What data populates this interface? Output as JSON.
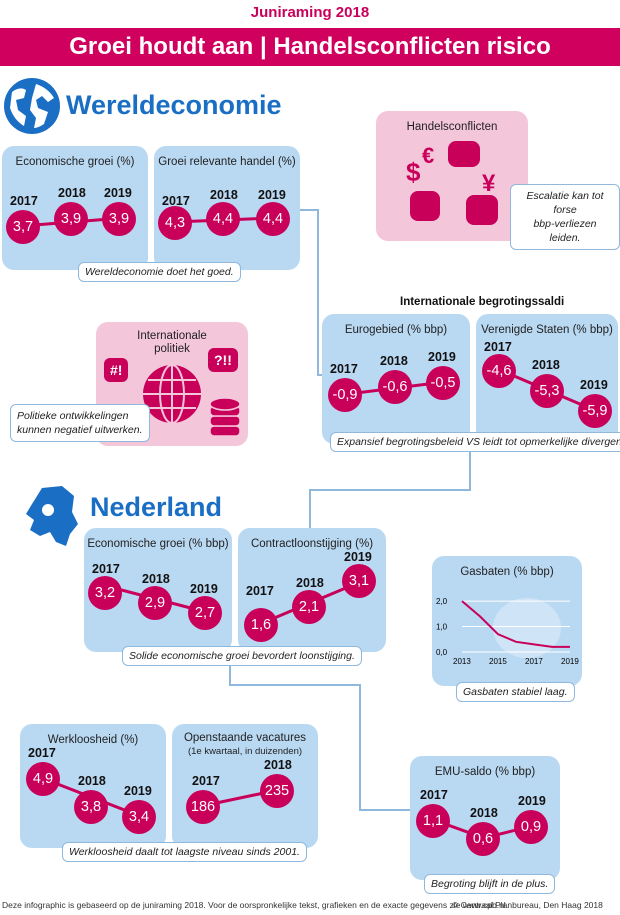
{
  "header": {
    "top_label": "Juniraming 2018",
    "title": "Groei houdt aan | Handelsconflicten risico"
  },
  "world": {
    "section_title": "Wereldeconomie",
    "growth": {
      "title": "Economische groei (%)",
      "years": [
        "2017",
        "2018",
        "2019"
      ],
      "values": [
        "3,7",
        "3,9",
        "3,9"
      ]
    },
    "trade": {
      "title": "Groei relevante handel (%)",
      "years": [
        "2017",
        "2018",
        "2019"
      ],
      "values": [
        "4,3",
        "4,4",
        "4,4"
      ]
    },
    "caption": "Wereldeconomie doet het goed.",
    "trade_conflicts": {
      "title": "Handelsconflicten",
      "caption_line1": "Escalatie kan tot forse",
      "caption_line2": "bbp-verliezen leiden."
    },
    "politics": {
      "title_line1": "Internationale",
      "title_line2": "politiek",
      "badge1": "#!",
      "badge2": "?!!",
      "caption_line1": "Politieke ontwikkelingen",
      "caption_line2": "kunnen negatief uitwerken."
    },
    "budget_heading": "Internationale begrotingssaldi",
    "eurozone": {
      "title": "Eurogebied (% bbp)",
      "years": [
        "2017",
        "2018",
        "2019"
      ],
      "values": [
        "-0,9",
        "-0,6",
        "-0,5"
      ]
    },
    "us": {
      "title": "Verenigde Staten (% bbp)",
      "years": [
        "2017",
        "2018",
        "2019"
      ],
      "values": [
        "-4,6",
        "-5,3",
        "-5,9"
      ]
    },
    "budget_caption": "Expansief begrotingsbeleid VS leidt tot opmerkelijke divergenties."
  },
  "nl": {
    "section_title": "Nederland",
    "growth": {
      "title": "Economische groei (% bbp)",
      "years": [
        "2017",
        "2018",
        "2019"
      ],
      "values": [
        "3,2",
        "2,9",
        "2,7"
      ]
    },
    "wages": {
      "title": "Contractloonstijging (%)",
      "years": [
        "2017",
        "2018",
        "2019"
      ],
      "values": [
        "1,6",
        "2,1",
        "3,1"
      ]
    },
    "caption": "Solide economische groei bevordert loonstijging.",
    "gas": {
      "title": "Gasbaten (% bbp)",
      "caption": "Gasbaten stabiel laag."
    },
    "unemployment": {
      "title": "Werkloosheid (%)",
      "years": [
        "2017",
        "2018",
        "2019"
      ],
      "values": [
        "4,9",
        "3,8",
        "3,4"
      ]
    },
    "vacancies": {
      "title": "Openstaande vacatures",
      "subtitle": "(1e kwartaal, in duizenden)",
      "years": [
        "2017",
        "2018"
      ],
      "values": [
        "186",
        "235"
      ]
    },
    "unemployment_caption": "Werkloosheid daalt tot laagste niveau sinds 2001.",
    "emu": {
      "title": "EMU-saldo (% bbp)",
      "years": [
        "2017",
        "2018",
        "2019"
      ],
      "values": [
        "1,1",
        "0,6",
        "0,9"
      ],
      "caption": "Begroting blijft in de plus."
    }
  },
  "chart_data": {
    "type": "line",
    "title": "Gasbaten (% bbp)",
    "x": [
      2013,
      2014,
      2015,
      2016,
      2017,
      2018,
      2019
    ],
    "series": [
      {
        "values": [
          2.0,
          1.4,
          0.7,
          0.4,
          0.3,
          0.2,
          0.2
        ]
      }
    ],
    "xticks": [
      "2013",
      "2015",
      "2017",
      "2019"
    ],
    "yticks": [
      "2,0",
      "1,0",
      "0,0"
    ],
    "ylim": [
      0,
      2.2
    ],
    "grid": true,
    "line_color": "#c8005a"
  },
  "footer": {
    "left": "Deze infographic is gebaseerd op de juniraming 2018. Voor de oorspronkelijke tekst, grafieken en de exacte gegevens zie www.cpb.nl.",
    "right": "© Centraal Planbureau, Den Haag 2018"
  }
}
